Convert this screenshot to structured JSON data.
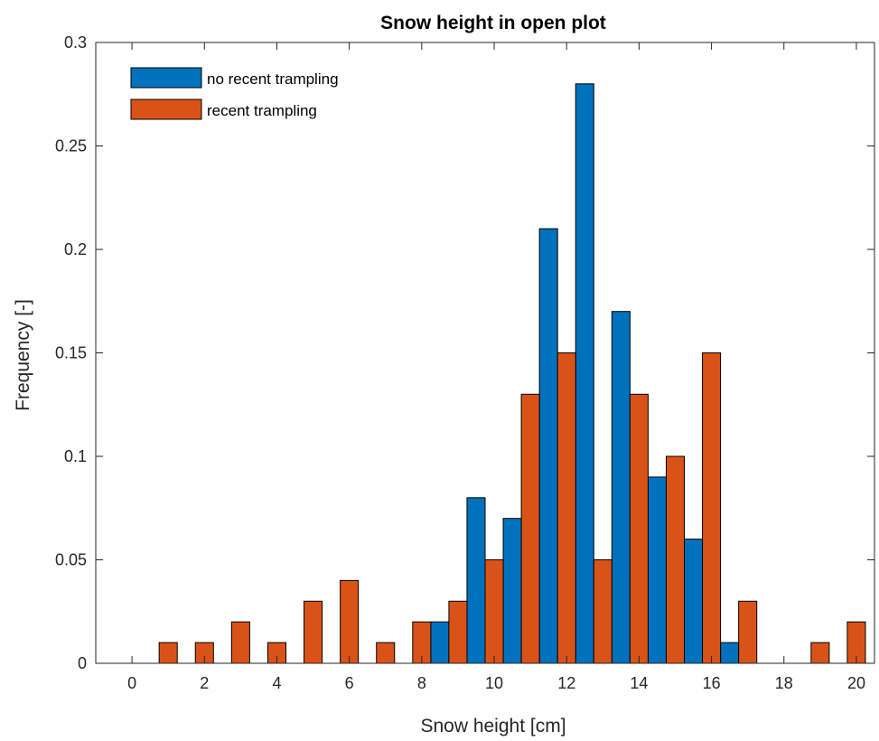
{
  "chart_data": {
    "type": "bar",
    "title": "Snow height in open plot",
    "xlabel": "Snow height [cm]",
    "ylabel": "Frequency [-]",
    "xlim": [
      -1,
      20.5
    ],
    "ylim": [
      0,
      0.3
    ],
    "xticks": [
      0,
      2,
      4,
      6,
      8,
      10,
      12,
      14,
      16,
      18,
      20
    ],
    "yticks": [
      0,
      0.05,
      0.1,
      0.15,
      0.2,
      0.25,
      0.3
    ],
    "xtick_labels": [
      "0",
      "2",
      "4",
      "6",
      "8",
      "10",
      "12",
      "14",
      "16",
      "18",
      "20"
    ],
    "ytick_labels": [
      "0",
      "0.05",
      "0.1",
      "0.15",
      "0.2",
      "0.25",
      "0.3"
    ],
    "legend_position": "top-left",
    "grid": false,
    "series": [
      {
        "name": "no recent trampling",
        "color": "#0072BD",
        "points": [
          {
            "x": 8.5,
            "y": 0.02
          },
          {
            "x": 9.5,
            "y": 0.08
          },
          {
            "x": 10.5,
            "y": 0.07
          },
          {
            "x": 11.5,
            "y": 0.21
          },
          {
            "x": 12.5,
            "y": 0.28
          },
          {
            "x": 13.5,
            "y": 0.17
          },
          {
            "x": 14.5,
            "y": 0.09
          },
          {
            "x": 15.5,
            "y": 0.06
          },
          {
            "x": 16.5,
            "y": 0.01
          }
        ]
      },
      {
        "name": "recent trampling",
        "color": "#D95319",
        "points": [
          {
            "x": 1,
            "y": 0.01
          },
          {
            "x": 2,
            "y": 0.01
          },
          {
            "x": 3,
            "y": 0.02
          },
          {
            "x": 4,
            "y": 0.01
          },
          {
            "x": 5,
            "y": 0.03
          },
          {
            "x": 6,
            "y": 0.04
          },
          {
            "x": 7,
            "y": 0.01
          },
          {
            "x": 8,
            "y": 0.02
          },
          {
            "x": 9,
            "y": 0.03
          },
          {
            "x": 10,
            "y": 0.05
          },
          {
            "x": 11,
            "y": 0.13
          },
          {
            "x": 12,
            "y": 0.15
          },
          {
            "x": 13,
            "y": 0.05
          },
          {
            "x": 14,
            "y": 0.13
          },
          {
            "x": 15,
            "y": 0.1
          },
          {
            "x": 16,
            "y": 0.15
          },
          {
            "x": 17,
            "y": 0.03
          },
          {
            "x": 19,
            "y": 0.01
          },
          {
            "x": 20,
            "y": 0.02
          }
        ]
      }
    ]
  }
}
